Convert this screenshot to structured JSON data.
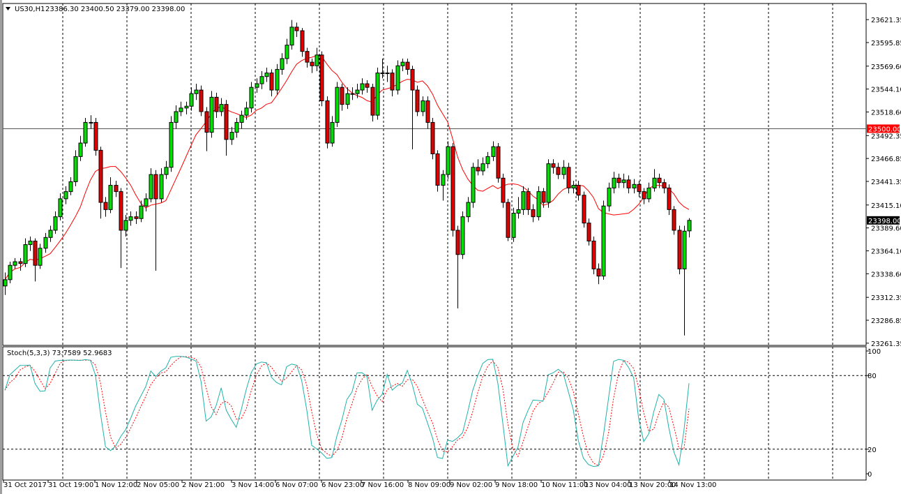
{
  "header": {
    "symbol_timeframe": "US30,H1",
    "ohlc_text": "23386.30 23400.50 23379.00 23398.00",
    "menu_icon": "triangle-down-icon"
  },
  "indicator": {
    "label": "Stoch(5,3,3) 73.7589 52.9683",
    "levels": [
      "100",
      "80",
      "20",
      "0"
    ]
  },
  "colors": {
    "bull": "#00e000",
    "bear": "#e00000",
    "ma": "#ff0000",
    "stoch_main": "#20b2aa",
    "stoch_signal": "#ff0000",
    "hline": "#ff0000",
    "current_price_bg": "#000000"
  },
  "chart_data": {
    "type": "candlestick",
    "title": "US30,H1",
    "grid": true,
    "ylim": [
      23258.9,
      23639.3
    ],
    "y_ticks": [
      "23621.35",
      "23595.85",
      "23569.60",
      "23544.10",
      "23518.60",
      "23492.35",
      "23466.85",
      "23441.35",
      "23415.10",
      "23389.60",
      "23364.10",
      "23338.60",
      "23312.35",
      "23286.85",
      "23261.35"
    ],
    "x_ticks": [
      "31 Oct 2017",
      "31 Oct 19:00",
      "1 Nov 12:00",
      "2 Nov 05:00",
      "2 Nov 21:00",
      "3 Nov 14:00",
      "6 Nov 07:00",
      "6 Nov 23:00",
      "7 Nov 16:00",
      "8 Nov 09:00",
      "9 Nov 02:00",
      "9 Nov 18:00",
      "10 Nov 11:00",
      "13 Nov 04:00",
      "13 Nov 20:00",
      "14 Nov 13:00"
    ],
    "horizontal_line": {
      "price": 23500.0,
      "label": "23500.00"
    },
    "current_price": {
      "price": 23398.0,
      "label": "23398.00"
    },
    "candles_ohlc": [
      [
        23325,
        23340,
        23315,
        23332
      ],
      [
        23332,
        23352,
        23328,
        23348
      ],
      [
        23348,
        23356,
        23344,
        23352
      ],
      [
        23352,
        23356,
        23342,
        23350
      ],
      [
        23350,
        23378,
        23346,
        23371
      ],
      [
        23371,
        23380,
        23364,
        23375
      ],
      [
        23375,
        23378,
        23330,
        23348
      ],
      [
        23348,
        23372,
        23344,
        23367
      ],
      [
        23367,
        23384,
        23362,
        23379
      ],
      [
        23379,
        23392,
        23374,
        23387
      ],
      [
        23387,
        23408,
        23383,
        23402
      ],
      [
        23402,
        23428,
        23398,
        23422
      ],
      [
        23422,
        23436,
        23416,
        23430
      ],
      [
        23430,
        23446,
        23426,
        23441
      ],
      [
        23441,
        23476,
        23436,
        23469
      ],
      [
        23469,
        23492,
        23464,
        23484
      ],
      [
        23484,
        23512,
        23480,
        23507
      ],
      [
        23507,
        23515,
        23500,
        23507
      ],
      [
        23507,
        23512,
        23470,
        23476
      ],
      [
        23476,
        23480,
        23400,
        23418
      ],
      [
        23418,
        23424,
        23402,
        23410
      ],
      [
        23410,
        23446,
        23406,
        23437
      ],
      [
        23437,
        23442,
        23424,
        23430
      ],
      [
        23430,
        23434,
        23345,
        23387
      ],
      [
        23387,
        23404,
        23380,
        23398
      ],
      [
        23398,
        23408,
        23392,
        23402
      ],
      [
        23402,
        23408,
        23394,
        23400
      ],
      [
        23400,
        23420,
        23396,
        23414
      ],
      [
        23414,
        23428,
        23408,
        23422
      ],
      [
        23422,
        23456,
        23418,
        23449
      ],
      [
        23449,
        23454,
        23342,
        23422
      ],
      [
        23422,
        23456,
        23418,
        23449
      ],
      [
        23449,
        23464,
        23444,
        23457
      ],
      [
        23457,
        23514,
        23452,
        23507
      ],
      [
        23507,
        23526,
        23500,
        23519
      ],
      [
        23519,
        23530,
        23514,
        23523
      ],
      [
        23523,
        23530,
        23516,
        23525
      ],
      [
        23525,
        23546,
        23520,
        23539
      ],
      [
        23539,
        23550,
        23532,
        23543
      ],
      [
        23543,
        23548,
        23514,
        23519
      ],
      [
        23519,
        23524,
        23475,
        23496
      ],
      [
        23496,
        23542,
        23490,
        23535
      ],
      [
        23535,
        23540,
        23512,
        23519
      ],
      [
        23519,
        23534,
        23514,
        23527
      ],
      [
        23527,
        23532,
        23470,
        23488
      ],
      [
        23488,
        23502,
        23482,
        23496
      ],
      [
        23496,
        23512,
        23490,
        23507
      ],
      [
        23507,
        23520,
        23500,
        23515
      ],
      [
        23515,
        23530,
        23510,
        23523
      ],
      [
        23523,
        23552,
        23518,
        23546
      ],
      [
        23546,
        23556,
        23540,
        23550
      ],
      [
        23550,
        23564,
        23544,
        23558
      ],
      [
        23558,
        23568,
        23552,
        23562
      ],
      [
        23562,
        23566,
        23536,
        23543
      ],
      [
        23543,
        23572,
        23538,
        23566
      ],
      [
        23566,
        23584,
        23560,
        23578
      ],
      [
        23578,
        23600,
        23572,
        23593
      ],
      [
        23593,
        23621,
        23588,
        23613
      ],
      [
        23613,
        23618,
        23602,
        23609
      ],
      [
        23609,
        23612,
        23580,
        23586
      ],
      [
        23586,
        23590,
        23568,
        23574
      ],
      [
        23574,
        23578,
        23562,
        23570
      ],
      [
        23570,
        23590,
        23564,
        23582
      ],
      [
        23582,
        23586,
        23525,
        23531
      ],
      [
        23531,
        23536,
        23478,
        23484
      ],
      [
        23484,
        23514,
        23480,
        23507
      ],
      [
        23507,
        23552,
        23502,
        23546
      ],
      [
        23546,
        23550,
        23520,
        23527
      ],
      [
        23527,
        23546,
        23522,
        23539
      ],
      [
        23539,
        23546,
        23532,
        23539
      ],
      [
        23539,
        23550,
        23534,
        23543
      ],
      [
        23543,
        23556,
        23538,
        23550
      ],
      [
        23550,
        23554,
        23540,
        23546
      ],
      [
        23546,
        23550,
        23508,
        23515
      ],
      [
        23515,
        23568,
        23510,
        23562
      ],
      [
        23562,
        23578,
        23556,
        23562
      ],
      [
        23562,
        23570,
        23552,
        23562
      ],
      [
        23562,
        23566,
        23536,
        23543
      ],
      [
        23543,
        23576,
        23538,
        23570
      ],
      [
        23570,
        23578,
        23564,
        23574
      ],
      [
        23574,
        23578,
        23560,
        23566
      ],
      [
        23566,
        23570,
        23477,
        23543
      ],
      [
        23543,
        23548,
        23514,
        23519
      ],
      [
        23519,
        23536,
        23514,
        23531
      ],
      [
        23531,
        23536,
        23500,
        23507
      ],
      [
        23507,
        23512,
        23466,
        23472
      ],
      [
        23472,
        23476,
        23430,
        23437
      ],
      [
        23437,
        23454,
        23420,
        23449
      ],
      [
        23449,
        23486,
        23444,
        23480
      ],
      [
        23480,
        23484,
        23380,
        23387
      ],
      [
        23387,
        23392,
        23300,
        23360
      ],
      [
        23360,
        23408,
        23355,
        23402
      ],
      [
        23402,
        23424,
        23396,
        23418
      ],
      [
        23418,
        23462,
        23412,
        23457
      ],
      [
        23457,
        23466,
        23448,
        23453
      ],
      [
        23453,
        23468,
        23448,
        23461
      ],
      [
        23461,
        23474,
        23456,
        23469
      ],
      [
        23469,
        23486,
        23464,
        23480
      ],
      [
        23480,
        23484,
        23440,
        23445
      ],
      [
        23445,
        23450,
        23412,
        23418
      ],
      [
        23418,
        23422,
        23375,
        23379
      ],
      [
        23379,
        23412,
        23374,
        23406
      ],
      [
        23406,
        23424,
        23400,
        23410
      ],
      [
        23410,
        23436,
        23404,
        23430
      ],
      [
        23430,
        23434,
        23404,
        23410
      ],
      [
        23410,
        23416,
        23396,
        23402
      ],
      [
        23402,
        23436,
        23398,
        23430
      ],
      [
        23430,
        23434,
        23412,
        23418
      ],
      [
        23418,
        23466,
        23412,
        23461
      ],
      [
        23461,
        23466,
        23450,
        23457
      ],
      [
        23457,
        23462,
        23444,
        23449
      ],
      [
        23449,
        23465,
        23444,
        23457
      ],
      [
        23457,
        23462,
        23428,
        23434
      ],
      [
        23434,
        23442,
        23428,
        23437
      ],
      [
        23437,
        23442,
        23420,
        23426
      ],
      [
        23426,
        23430,
        23390,
        23395
      ],
      [
        23395,
        23400,
        23370,
        23375
      ],
      [
        23375,
        23380,
        23338,
        23344
      ],
      [
        23344,
        23350,
        23327,
        23336
      ],
      [
        23336,
        23420,
        23332,
        23414
      ],
      [
        23414,
        23440,
        23408,
        23434
      ],
      [
        23434,
        23452,
        23428,
        23445
      ],
      [
        23445,
        23450,
        23434,
        23440
      ],
      [
        23440,
        23450,
        23434,
        23443
      ],
      [
        23443,
        23448,
        23428,
        23434
      ],
      [
        23434,
        23444,
        23428,
        23438
      ],
      [
        23438,
        23442,
        23424,
        23430
      ],
      [
        23430,
        23434,
        23416,
        23422
      ],
      [
        23422,
        23440,
        23418,
        23434
      ],
      [
        23434,
        23455,
        23430,
        23445
      ],
      [
        23445,
        23450,
        23434,
        23440
      ],
      [
        23440,
        23444,
        23428,
        23434
      ],
      [
        23434,
        23438,
        23404,
        23410
      ],
      [
        23410,
        23414,
        23382,
        23387
      ],
      [
        23387,
        23392,
        23338,
        23344
      ],
      [
        23344,
        23392,
        23270,
        23386
      ],
      [
        23386.3,
        23400.5,
        23379,
        23398
      ]
    ],
    "stochastic": {
      "k_period": 5,
      "d_period": 3,
      "slowing": 3,
      "last_k": 73.7589,
      "last_d": 52.9683,
      "levels": [
        20,
        80
      ],
      "ylim": [
        0,
        100
      ]
    }
  }
}
